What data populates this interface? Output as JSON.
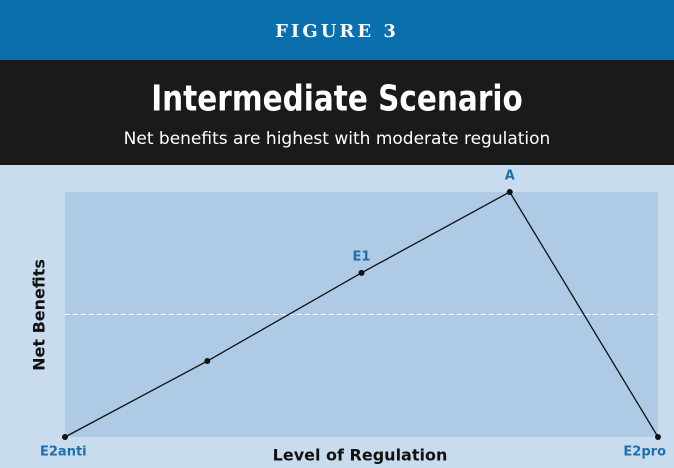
{
  "chart_data": {
    "type": "line",
    "figure_label": "FIGURE 3",
    "title": "Intermediate Scenario",
    "subtitle": "Net benefits are highest with moderate regulation",
    "x_label": "Level of Regulation",
    "y_label": "Net Benefits",
    "x": [
      0,
      24,
      50,
      75,
      100
    ],
    "series": [
      {
        "color": "#111111",
        "values": [
          0,
          31,
          67,
          100,
          0
        ]
      }
    ],
    "point_labels": [
      "E2anti",
      null,
      "E1",
      "A",
      "E2pro"
    ],
    "xlim": [
      0,
      100
    ],
    "ylim": [
      0,
      100
    ],
    "reference_line": 50
  }
}
